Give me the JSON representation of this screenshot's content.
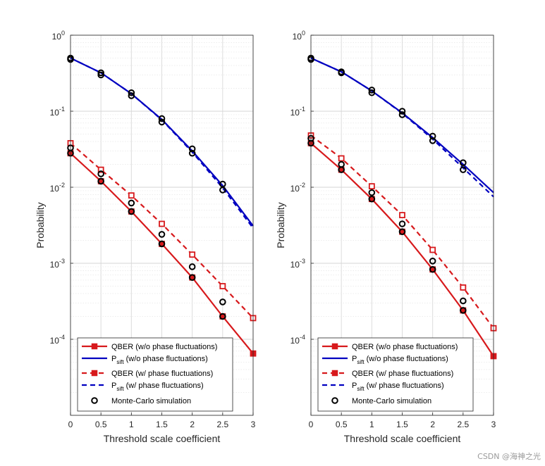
{
  "chart_data": [
    {
      "type": "line",
      "panel": "left",
      "xlabel": "Threshold scale coefficient",
      "ylabel": "Probability",
      "yscale": "log",
      "xlim": [
        0,
        3
      ],
      "ylim": [
        1e-05,
        1
      ],
      "xticks": [
        0,
        0.5,
        1,
        1.5,
        2,
        2.5,
        3
      ],
      "xtick_labels": [
        "0",
        "0.5",
        "1",
        "1.5",
        "2",
        "2.5",
        "3"
      ],
      "ytick_labels": [
        {
          "base": "10",
          "exp": "0",
          "value": 1
        },
        {
          "base": "10",
          "exp": "-1",
          "value": 0.1
        },
        {
          "base": "10",
          "exp": "-2",
          "value": 0.01
        },
        {
          "base": "10",
          "exp": "-3",
          "value": 0.001
        },
        {
          "base": "10",
          "exp": "-4",
          "value": 0.0001
        }
      ],
      "grid": true,
      "legend_position": "bottom-left",
      "series": [
        {
          "name": "QBER (w/o phase fluctuations)",
          "style": "solid",
          "color": "#d7191c",
          "marker": "square",
          "x": [
            0,
            0.5,
            1,
            1.5,
            2,
            2.5,
            3
          ],
          "values": [
            0.028,
            0.012,
            0.0048,
            0.0018,
            0.00065,
            0.0002,
            6.5e-05
          ]
        },
        {
          "name": "P_sift (w/o phase fluctuations)",
          "style": "solid",
          "color": "#0000c0",
          "marker": "none",
          "x": [
            0,
            0.5,
            1,
            1.5,
            2,
            2.5,
            3
          ],
          "values": [
            0.5,
            0.32,
            0.17,
            0.078,
            0.03,
            0.0105,
            0.0031
          ]
        },
        {
          "name": "QBER (w/ phase fluctuations)",
          "style": "dashed",
          "color": "#d7191c",
          "marker": "square",
          "x": [
            0,
            0.5,
            1,
            1.5,
            2,
            2.5,
            3
          ],
          "values": [
            0.038,
            0.017,
            0.0078,
            0.0033,
            0.0013,
            0.0005,
            0.00019
          ]
        },
        {
          "name": "P_sift (w/ phase fluctuations)",
          "style": "dashed",
          "color": "#0000c0",
          "marker": "none",
          "x": [
            0,
            0.5,
            1,
            1.5,
            2,
            2.5,
            3
          ],
          "values": [
            0.5,
            0.32,
            0.17,
            0.077,
            0.029,
            0.0098,
            0.0029
          ]
        },
        {
          "name": "Monte-Carlo simulation",
          "style": "none",
          "color": "#000000",
          "marker": "circle",
          "x": [
            0,
            0,
            0,
            0,
            0.5,
            0.5,
            0.5,
            0.5,
            1,
            1,
            1,
            1,
            1.5,
            1.5,
            1.5,
            1.5,
            2,
            2,
            2,
            2,
            2.5,
            2.5,
            2.5,
            2.5
          ],
          "values": [
            0.5,
            0.48,
            0.028,
            0.033,
            0.32,
            0.3,
            0.012,
            0.015,
            0.175,
            0.16,
            0.0048,
            0.0062,
            0.08,
            0.072,
            0.0018,
            0.0024,
            0.032,
            0.028,
            0.00065,
            0.0009,
            0.011,
            0.0092,
            0.0002,
            0.00031
          ]
        }
      ],
      "legend": [
        {
          "label": "QBER (w/o phase fluctuations)",
          "main": "QBER (w/o phase fluctuations)",
          "sub": ""
        },
        {
          "label": "P_sift (w/o phase fluctuations)",
          "main": "P",
          "sub": "sift",
          "rest": " (w/o phase fluctuations)"
        },
        {
          "label": "QBER (w/ phase fluctuations)",
          "main": "QBER (w/ phase fluctuations)",
          "sub": ""
        },
        {
          "label": "P_sift (w/ phase fluctuations)",
          "main": "P",
          "sub": "sift",
          "rest": " (w/ phase fluctuations)"
        },
        {
          "label": "Monte-Carlo simulation",
          "main": "Monte-Carlo simulation",
          "sub": ""
        }
      ]
    },
    {
      "type": "line",
      "panel": "right",
      "xlabel": "Threshold scale coefficient",
      "ylabel": "Probability",
      "yscale": "log",
      "xlim": [
        0,
        3
      ],
      "ylim": [
        1e-05,
        1
      ],
      "xticks": [
        0,
        0.5,
        1,
        1.5,
        2,
        2.5,
        3
      ],
      "xtick_labels": [
        "0",
        "0.5",
        "1",
        "1.5",
        "2",
        "2.5",
        "3"
      ],
      "ytick_labels": [
        {
          "base": "10",
          "exp": "0",
          "value": 1
        },
        {
          "base": "10",
          "exp": "-1",
          "value": 0.1
        },
        {
          "base": "10",
          "exp": "-2",
          "value": 0.01
        },
        {
          "base": "10",
          "exp": "-3",
          "value": 0.001
        },
        {
          "base": "10",
          "exp": "-4",
          "value": 0.0001
        }
      ],
      "grid": true,
      "legend_position": "bottom-left",
      "series": [
        {
          "name": "QBER (w/o phase fluctuations)",
          "style": "solid",
          "color": "#d7191c",
          "marker": "square",
          "x": [
            0,
            0.5,
            1,
            1.5,
            2,
            2.5,
            3
          ],
          "values": [
            0.038,
            0.017,
            0.007,
            0.0026,
            0.00083,
            0.00024,
            6e-05
          ]
        },
        {
          "name": "P_sift (w/o phase fluctuations)",
          "style": "solid",
          "color": "#0000c0",
          "marker": "none",
          "x": [
            0,
            0.5,
            1,
            1.5,
            2,
            2.5,
            3
          ],
          "values": [
            0.5,
            0.33,
            0.185,
            0.095,
            0.045,
            0.02,
            0.0085
          ]
        },
        {
          "name": "QBER (w/ phase fluctuations)",
          "style": "dashed",
          "color": "#d7191c",
          "marker": "square",
          "x": [
            0,
            0.5,
            1,
            1.5,
            2,
            2.5,
            3
          ],
          "values": [
            0.048,
            0.024,
            0.0103,
            0.0043,
            0.0015,
            0.00048,
            0.00014
          ]
        },
        {
          "name": "P_sift (w/ phase fluctuations)",
          "style": "dashed",
          "color": "#0000c0",
          "marker": "none",
          "x": [
            0,
            0.5,
            1,
            1.5,
            2,
            2.5,
            3
          ],
          "values": [
            0.5,
            0.33,
            0.185,
            0.094,
            0.043,
            0.018,
            0.0075
          ]
        },
        {
          "name": "Monte-Carlo simulation",
          "style": "none",
          "color": "#000000",
          "marker": "circle",
          "x": [
            0,
            0,
            0,
            0,
            0.5,
            0.5,
            0.5,
            0.5,
            1,
            1,
            1,
            1,
            1.5,
            1.5,
            1.5,
            1.5,
            2,
            2,
            2,
            2,
            2.5,
            2.5,
            2.5,
            2.5
          ],
          "values": [
            0.5,
            0.48,
            0.038,
            0.044,
            0.33,
            0.32,
            0.017,
            0.02,
            0.19,
            0.175,
            0.007,
            0.0085,
            0.1,
            0.09,
            0.0026,
            0.0033,
            0.047,
            0.041,
            0.00083,
            0.00107,
            0.021,
            0.017,
            0.00024,
            0.00032
          ]
        }
      ],
      "legend": [
        {
          "label": "QBER (w/o phase fluctuations)",
          "main": "QBER (w/o phase fluctuations)",
          "sub": ""
        },
        {
          "label": "P_sift (w/o phase fluctuations)",
          "main": "P",
          "sub": "sift",
          "rest": " (w/o phase fluctuations)"
        },
        {
          "label": "QBER (w/ phase fluctuations)",
          "main": "QBER (w/ phase fluctuations)",
          "sub": ""
        },
        {
          "label": "P_sift (w/ phase fluctuations)",
          "main": "P",
          "sub": "sift",
          "rest": " (w/ phase fluctuations)"
        },
        {
          "label": "Monte-Carlo simulation",
          "main": "Monte-Carlo simulation",
          "sub": ""
        }
      ]
    }
  ],
  "watermark": "CSDN @海神之光"
}
